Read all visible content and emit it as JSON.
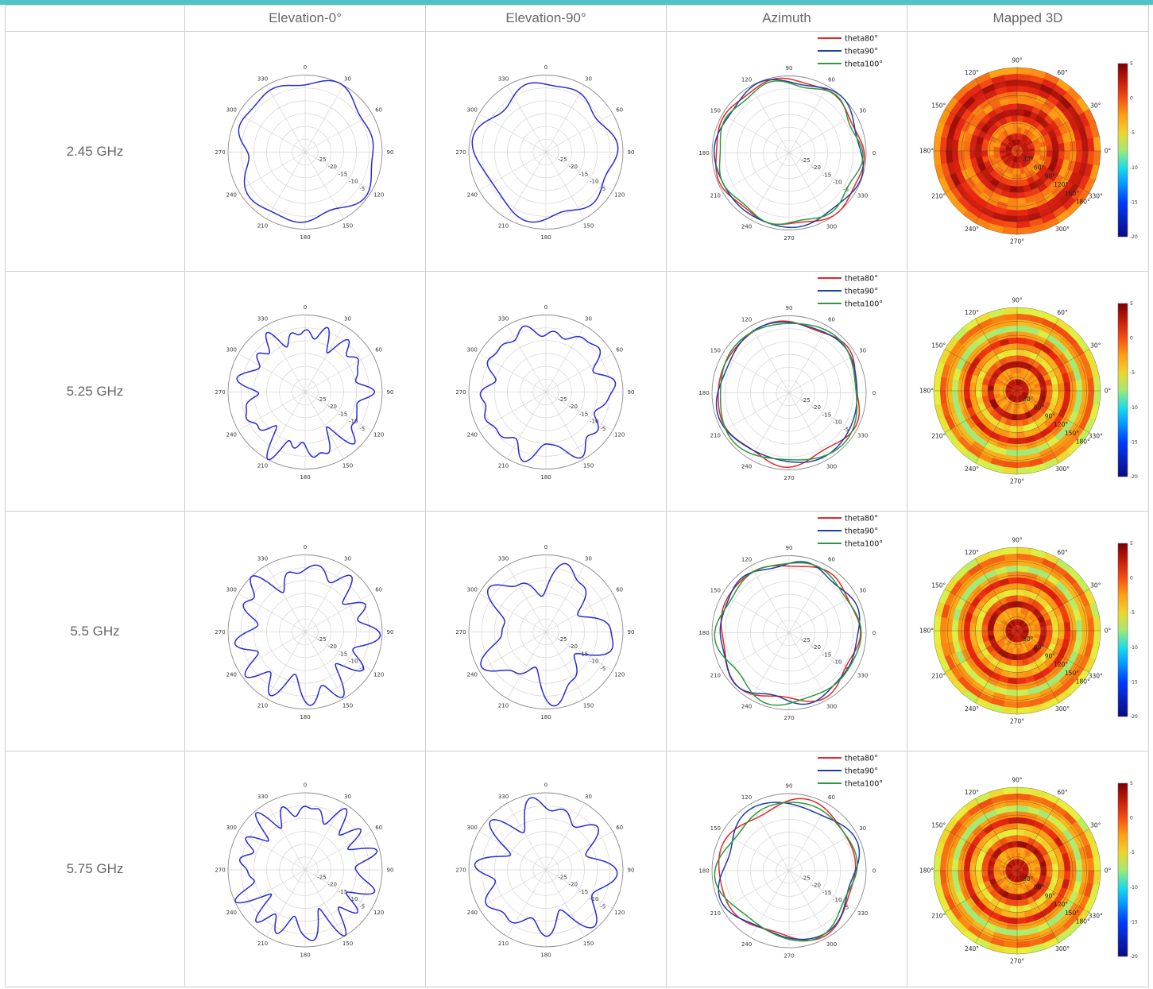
{
  "table": {
    "headers": [
      "",
      "Elevation-0°",
      "Elevation-90°",
      "Azimuth",
      "Mapped 3D"
    ],
    "rows": [
      {
        "label": "2.45 GHz"
      },
      {
        "label": "5.25 GHz"
      },
      {
        "label": "5.5 GHz"
      },
      {
        "label": "5.75 GHz"
      }
    ]
  },
  "colors": {
    "accent_bar": "#4fc3c9",
    "pattern_line": "#2a2ad6",
    "theta80": "#e8262b",
    "theta90": "#1f3fa3",
    "theta100": "#2a9a3c"
  },
  "chart_data": [
    {
      "type": "polar",
      "row": "2.45 GHz",
      "column": "Elevation-0°",
      "angle_ticks": [
        "0",
        "30",
        "60",
        "90",
        "120",
        "150",
        "180",
        "210",
        "240",
        "270",
        "300",
        "330"
      ],
      "radial_ticks": [
        "-25",
        "-20",
        "-15",
        "-10",
        "-5"
      ],
      "series": [
        {
          "r_min": -8,
          "r_max": 0,
          "lobes": [
            {
              "angle": 270,
              "depth": 0.38,
              "width": 24
            },
            {
              "angle": 225,
              "depth": 0.12,
              "width": 30
            },
            {
              "angle": 130,
              "depth": 0.1,
              "width": 40
            }
          ]
        }
      ]
    },
    {
      "type": "polar",
      "row": "2.45 GHz",
      "column": "Elevation-90°",
      "angle_ticks": [
        "0",
        "30",
        "60",
        "90",
        "120",
        "150",
        "180",
        "210",
        "240",
        "270",
        "300",
        "330"
      ],
      "radial_ticks": [
        "-25",
        "-20",
        "-15",
        "-10",
        "-5"
      ],
      "series": [
        {
          "r_min": -7,
          "r_max": -1,
          "lobes": [
            {
              "angle": 45,
              "depth": 0.1,
              "width": 30
            },
            {
              "angle": 200,
              "depth": 0.1,
              "width": 30
            },
            {
              "angle": 330,
              "depth": 0.07,
              "width": 20
            }
          ]
        }
      ]
    },
    {
      "type": "polar",
      "row": "2.45 GHz",
      "column": "Azimuth",
      "angle_ticks": [
        "0",
        "30",
        "60",
        "90",
        "120",
        "150",
        "180",
        "210",
        "240",
        "270",
        "300",
        "330"
      ],
      "radial_ticks": [
        "-25",
        "-20",
        "-15",
        "-10",
        "-5"
      ],
      "legend": [
        "theta80°",
        "theta90°",
        "theta100°"
      ],
      "series": [
        {
          "name": "theta80°",
          "r_min": -3,
          "r_max": 0
        },
        {
          "name": "theta90°",
          "r_min": -3,
          "r_max": 0
        },
        {
          "name": "theta100°",
          "r_min": -4,
          "r_max": -1
        }
      ]
    },
    {
      "type": "heatmap",
      "row": "2.45 GHz",
      "column": "Mapped 3D",
      "angle_ticks": [
        "90°",
        "60°",
        "30°",
        "0°",
        "330°",
        "300°",
        "270°",
        "240°",
        "210°",
        "180°",
        "150°",
        "120°"
      ],
      "radial_ticks": [
        "30°",
        "60°",
        "90°",
        "120°",
        "150°",
        "180°"
      ],
      "colorbar_ticks": [
        "5",
        "0",
        "-5",
        "-10",
        "-15",
        "-20"
      ],
      "dominant_level": "0 to 5 dB"
    },
    {
      "type": "polar",
      "row": "5.25 GHz",
      "column": "Elevation-0°",
      "angle_ticks": [
        "0",
        "30",
        "60",
        "90",
        "120",
        "150",
        "180",
        "210",
        "240",
        "270",
        "300",
        "330"
      ],
      "radial_ticks": [
        "-25",
        "-20",
        "-15",
        "-10",
        "-5"
      ],
      "series": [
        {
          "r_min": -14,
          "r_max": 0,
          "lobes_count": 12
        }
      ]
    },
    {
      "type": "polar",
      "row": "5.25 GHz",
      "column": "Elevation-90°",
      "angle_ticks": [
        "0",
        "30",
        "60",
        "90",
        "120",
        "150",
        "180",
        "210",
        "240",
        "270",
        "300",
        "330"
      ],
      "radial_ticks": [
        "-25",
        "-20",
        "-15",
        "-10",
        "-5"
      ],
      "series": [
        {
          "r_min": -10,
          "r_max": -1,
          "lobes_count": 10
        }
      ]
    },
    {
      "type": "polar",
      "row": "5.25 GHz",
      "column": "Azimuth",
      "angle_ticks": [
        "0",
        "30",
        "60",
        "90",
        "120",
        "150",
        "180",
        "210",
        "240",
        "270",
        "300",
        "330"
      ],
      "radial_ticks": [
        "-25",
        "-20",
        "-15",
        "-10",
        "-5"
      ],
      "legend": [
        "theta80°",
        "theta90°",
        "theta100°"
      ],
      "series": [
        {
          "name": "theta80°",
          "r_min": -4,
          "r_max": -1
        },
        {
          "name": "theta90°",
          "r_min": -4,
          "r_max": -1
        },
        {
          "name": "theta100°",
          "r_min": -4,
          "r_max": -1
        }
      ]
    },
    {
      "type": "heatmap",
      "row": "5.25 GHz",
      "column": "Mapped 3D",
      "angle_ticks": [
        "90°",
        "60°",
        "30°",
        "0°",
        "330°",
        "300°",
        "270°",
        "240°",
        "210°",
        "180°",
        "150°",
        "120°"
      ],
      "radial_ticks": [
        "30°",
        "60°",
        "90°",
        "120°",
        "150°",
        "180°"
      ],
      "colorbar_ticks": [
        "5",
        "0",
        "-5",
        "-10",
        "-15",
        "-20"
      ],
      "dominant_level": "-5 to 5 dB"
    },
    {
      "type": "polar",
      "row": "5.5 GHz",
      "column": "Elevation-0°",
      "angle_ticks": [
        "0",
        "30",
        "60",
        "90",
        "120",
        "150",
        "180",
        "210",
        "240",
        "270",
        "300",
        "330"
      ],
      "radial_ticks": [
        "-25",
        "-20",
        "-15",
        "-10",
        "-5"
      ],
      "series": [
        {
          "r_min": -13,
          "r_max": 0,
          "lobes_count": 10
        }
      ]
    },
    {
      "type": "polar",
      "row": "5.5 GHz",
      "column": "Elevation-90°",
      "angle_ticks": [
        "0",
        "30",
        "60",
        "90",
        "120",
        "150",
        "180",
        "210",
        "240",
        "270",
        "300",
        "330"
      ],
      "radial_ticks": [
        "-25",
        "-20",
        "-15",
        "-10",
        "-5"
      ],
      "series": [
        {
          "r_min": -16,
          "r_max": -1,
          "lobes_count": 6
        }
      ]
    },
    {
      "type": "polar",
      "row": "5.5 GHz",
      "column": "Azimuth",
      "angle_ticks": [
        "0",
        "30",
        "60",
        "90",
        "120",
        "150",
        "180",
        "210",
        "240",
        "270",
        "300",
        "330"
      ],
      "radial_ticks": [
        "-25",
        "-20",
        "-15",
        "-10",
        "-5"
      ],
      "legend": [
        "theta80°",
        "theta90°",
        "theta100°"
      ],
      "series": [
        {
          "name": "theta80°",
          "r_min": -5,
          "r_max": -1
        },
        {
          "name": "theta90°",
          "r_min": -5,
          "r_max": -1
        },
        {
          "name": "theta100°",
          "r_min": -5,
          "r_max": -1
        }
      ]
    },
    {
      "type": "heatmap",
      "row": "5.5 GHz",
      "column": "Mapped 3D",
      "angle_ticks": [
        "90°",
        "60°",
        "30°",
        "0°",
        "330°",
        "300°",
        "270°",
        "240°",
        "210°",
        "180°",
        "150°",
        "120°"
      ],
      "radial_ticks": [
        "30°",
        "60°",
        "90°",
        "120°",
        "150°",
        "180°"
      ],
      "colorbar_ticks": [
        "5",
        "0",
        "-5",
        "-10",
        "-15",
        "-20"
      ],
      "dominant_level": "-5 to 5 dB"
    },
    {
      "type": "polar",
      "row": "5.75 GHz",
      "column": "Elevation-0°",
      "angle_ticks": [
        "0",
        "30",
        "60",
        "90",
        "120",
        "150",
        "180",
        "210",
        "240",
        "270",
        "300",
        "330"
      ],
      "radial_ticks": [
        "-25",
        "-20",
        "-15",
        "-10",
        "-5"
      ],
      "series": [
        {
          "r_min": -14,
          "r_max": 0,
          "lobes_count": 12
        }
      ]
    },
    {
      "type": "polar",
      "row": "5.75 GHz",
      "column": "Elevation-90°",
      "angle_ticks": [
        "0",
        "30",
        "60",
        "90",
        "120",
        "150",
        "180",
        "210",
        "240",
        "270",
        "300",
        "330"
      ],
      "radial_ticks": [
        "-25",
        "-20",
        "-15",
        "-10",
        "-5"
      ],
      "series": [
        {
          "r_min": -15,
          "r_max": -1,
          "lobes_count": 6
        }
      ]
    },
    {
      "type": "polar",
      "row": "5.75 GHz",
      "column": "Azimuth",
      "angle_ticks": [
        "0",
        "30",
        "60",
        "90",
        "120",
        "150",
        "180",
        "210",
        "240",
        "270",
        "300",
        "330"
      ],
      "radial_ticks": [
        "-25",
        "-20",
        "-15",
        "-10",
        "-5"
      ],
      "legend": [
        "theta80°",
        "theta90°",
        "theta100°"
      ],
      "series": [
        {
          "name": "theta80°",
          "r_min": -6,
          "r_max": -1
        },
        {
          "name": "theta90°",
          "r_min": -6,
          "r_max": -1
        },
        {
          "name": "theta100°",
          "r_min": -6,
          "r_max": -1
        }
      ]
    },
    {
      "type": "heatmap",
      "row": "5.75 GHz",
      "column": "Mapped 3D",
      "angle_ticks": [
        "90°",
        "60°",
        "30°",
        "0°",
        "330°",
        "300°",
        "270°",
        "240°",
        "210°",
        "180°",
        "150°",
        "120°"
      ],
      "radial_ticks": [
        "30°",
        "60°",
        "90°",
        "120°",
        "150°",
        "180°"
      ],
      "colorbar_ticks": [
        "5",
        "0",
        "-5",
        "-10",
        "-15",
        "-20"
      ],
      "dominant_level": "-5 to 5 dB"
    }
  ]
}
